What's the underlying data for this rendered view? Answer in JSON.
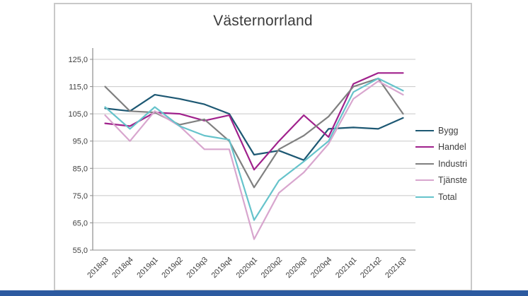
{
  "page": {
    "footer_bar_color": "#2c5aa0",
    "background_color": "#ffffff"
  },
  "chart": {
    "frame_border_color": "#c9c9c9",
    "gridline_color": "#c8c8c8",
    "axis_color": "#8c8c8c",
    "text_color": "#404040",
    "y_tick_labels": [
      "125,0",
      "115,0",
      "105,0",
      "95,0",
      "85,0",
      "75,0",
      "65,0",
      "55,0"
    ]
  },
  "chart_data": {
    "type": "line",
    "title": "Västernorrland",
    "categories": [
      "2018q3",
      "2018q4",
      "2019q1",
      "2019q2",
      "2019q3",
      "2019q4",
      "2020q1",
      "2020q2",
      "2020q3",
      "2020q4",
      "2021q1",
      "2021q2",
      "2021q3"
    ],
    "series": [
      {
        "name": "Bygg",
        "color": "#1d5873",
        "values": [
          107,
          106,
          112,
          110.5,
          108.5,
          105,
          90,
          91.5,
          88,
          99.5,
          100,
          99.5,
          103.5
        ]
      },
      {
        "name": "Handel",
        "color": "#a0218c",
        "values": [
          101.5,
          100.5,
          105.5,
          105,
          102.5,
          104.5,
          84.5,
          95,
          104.5,
          96.5,
          116,
          120,
          120
        ]
      },
      {
        "name": "Industri",
        "color": "#808080",
        "values": [
          115,
          106,
          105.5,
          101,
          103,
          95,
          78,
          92,
          97,
          104,
          115,
          118,
          105
        ]
      },
      {
        "name": "Tjänste",
        "color": "#d8a6ce",
        "values": [
          104.5,
          95,
          106,
          100.5,
          92,
          92,
          59,
          76,
          83.5,
          94,
          110.5,
          117,
          112
        ]
      },
      {
        "name": "Total",
        "color": "#66c3cb",
        "values": [
          107.5,
          99.5,
          107.5,
          100.5,
          97,
          95.5,
          66,
          80.5,
          87.5,
          95,
          113,
          118,
          113.5
        ]
      }
    ],
    "ylim": [
      55,
      125
    ],
    "ytick_step": 10,
    "decimal_separator": ",",
    "grid": true,
    "legend_position": "right",
    "xlabel": "",
    "ylabel": ""
  }
}
